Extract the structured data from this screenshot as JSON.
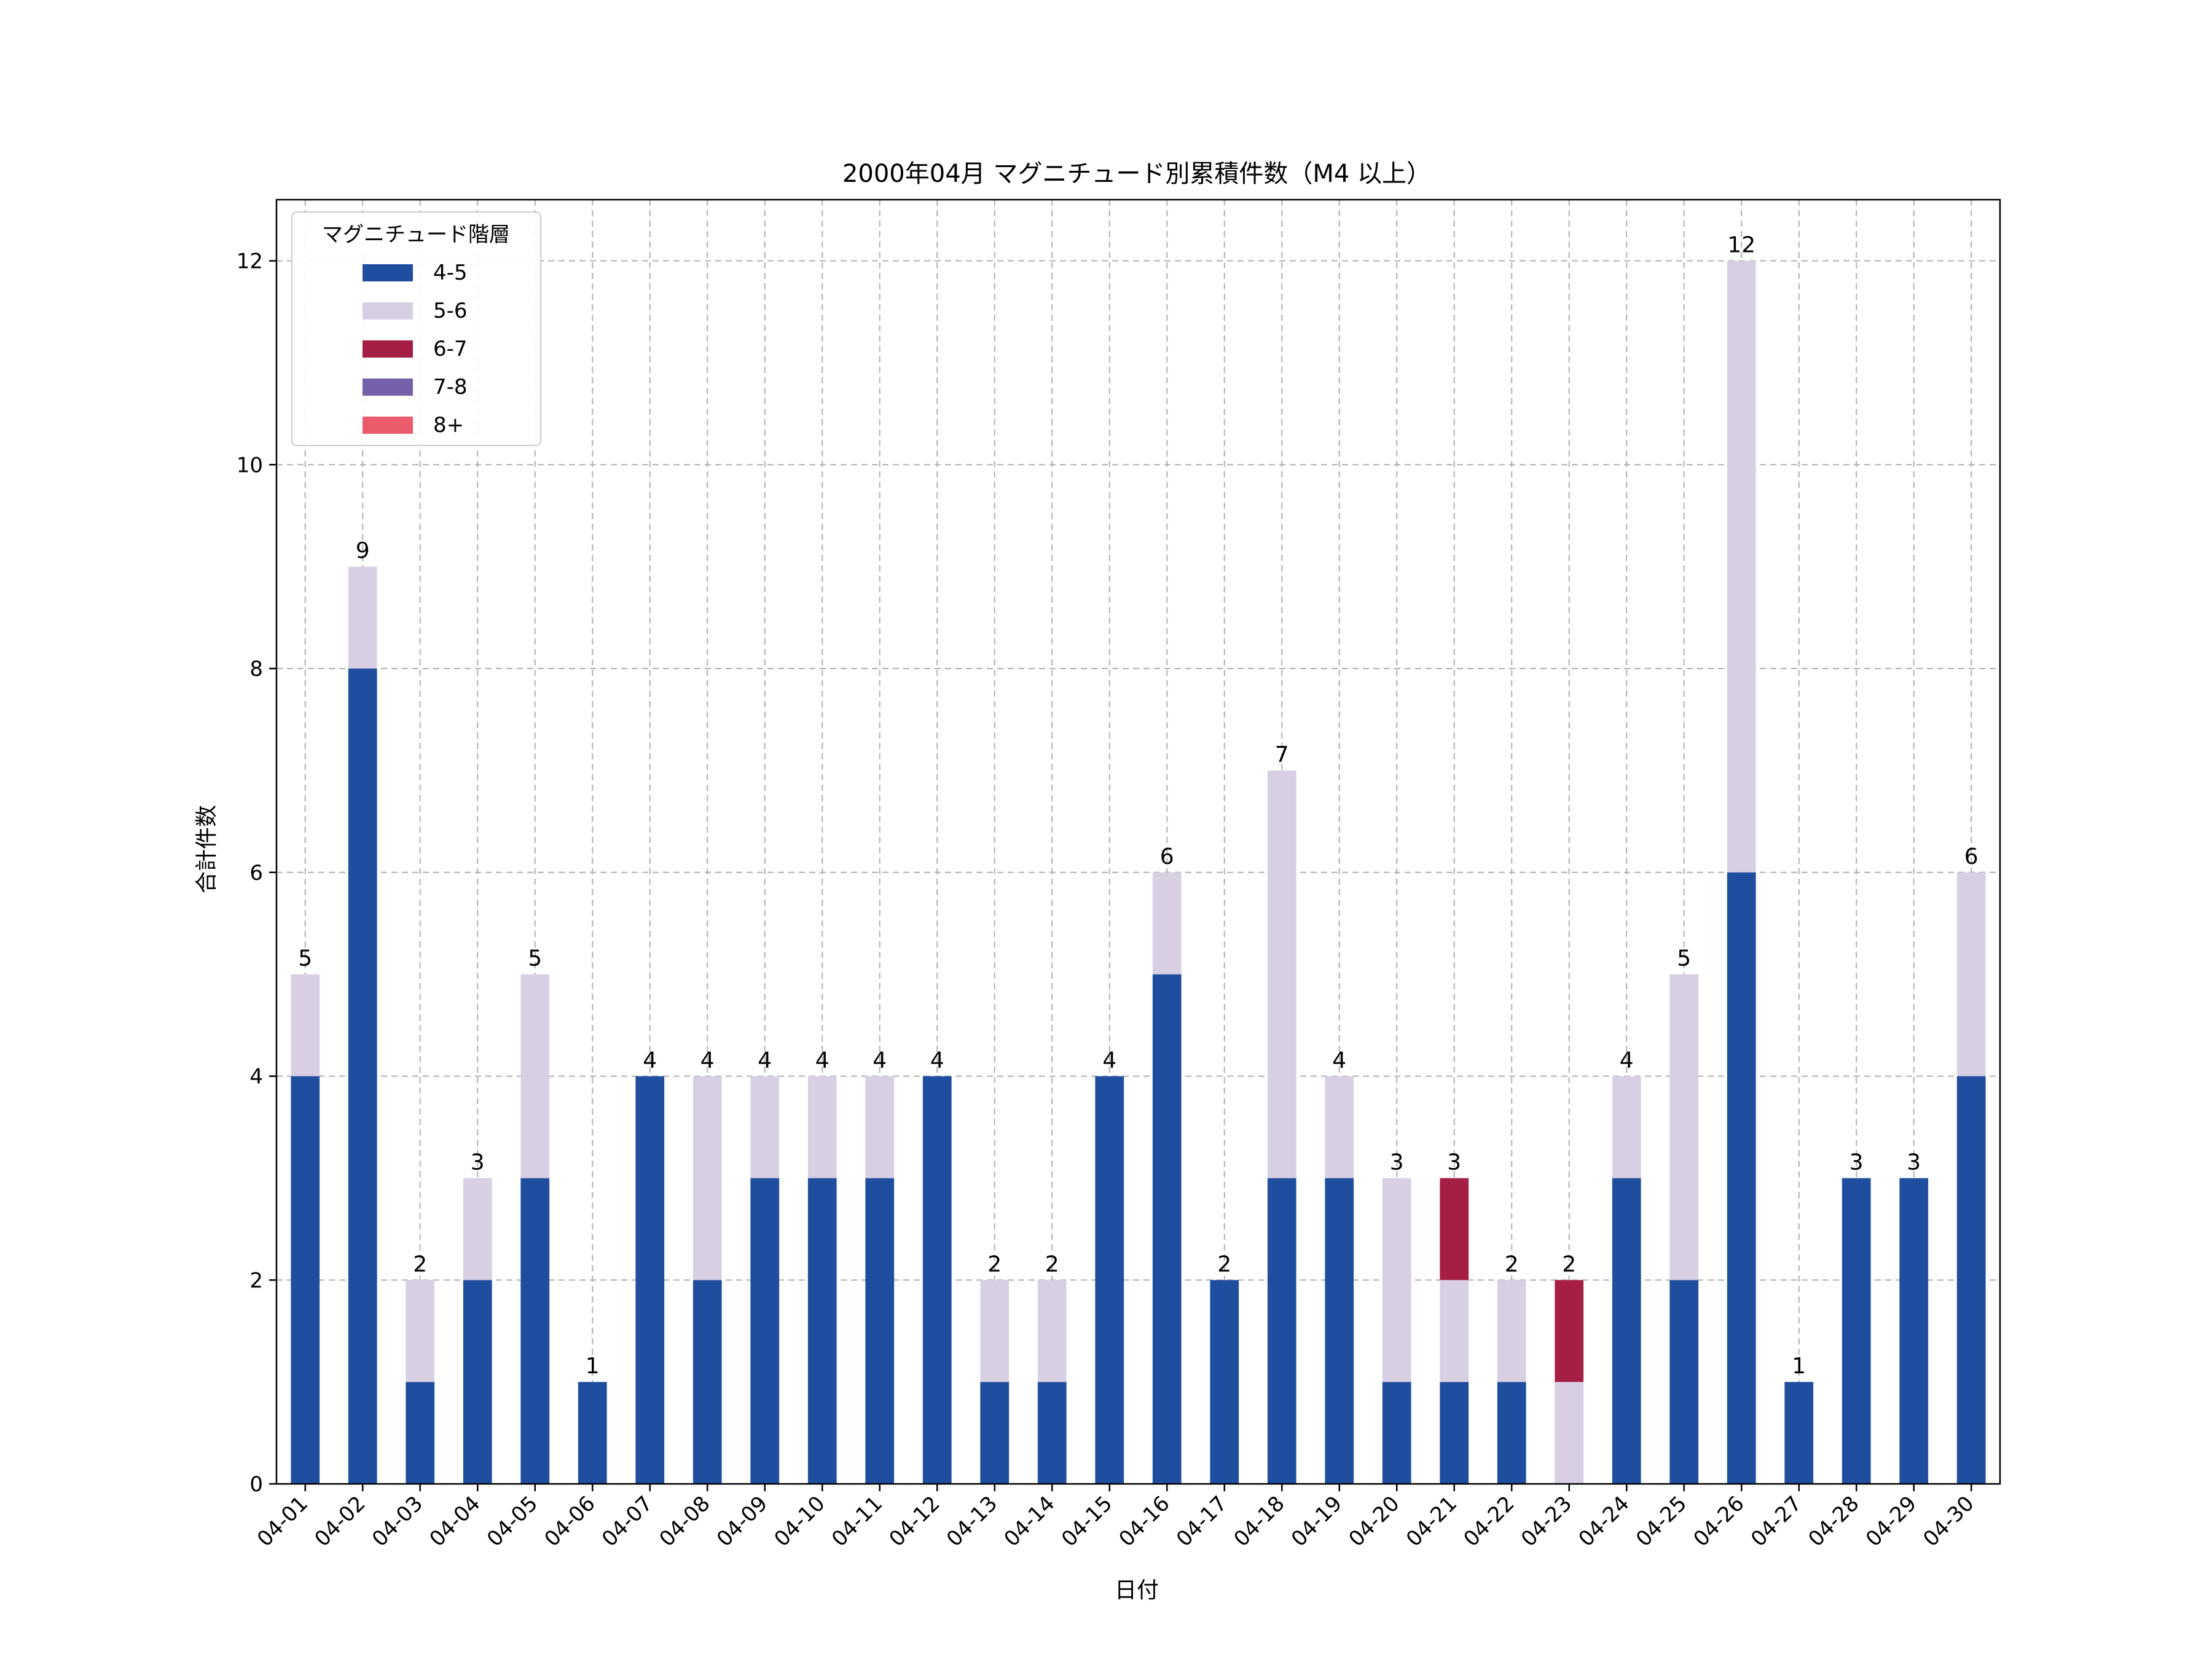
{
  "chart_data": {
    "type": "bar",
    "stacked": true,
    "title": "2000年04月 マグニチュード別累積件数（M4 以上）",
    "xlabel": "日付",
    "ylabel": "合計件数",
    "ylim": [
      0,
      12.6
    ],
    "yticks": [
      0,
      2,
      4,
      6,
      8,
      10,
      12
    ],
    "grid": true,
    "legend_title": "マグニチュード階層",
    "legend_position": "top-left",
    "categories": [
      "04-01",
      "04-02",
      "04-03",
      "04-04",
      "04-05",
      "04-06",
      "04-07",
      "04-08",
      "04-09",
      "04-10",
      "04-11",
      "04-12",
      "04-13",
      "04-14",
      "04-15",
      "04-16",
      "04-17",
      "04-18",
      "04-19",
      "04-20",
      "04-21",
      "04-22",
      "04-23",
      "04-24",
      "04-25",
      "04-26",
      "04-27",
      "04-28",
      "04-29",
      "04-30"
    ],
    "series": [
      {
        "name": "4-5",
        "color": "#1f4e9e",
        "values": [
          4,
          8,
          1,
          2,
          3,
          1,
          4,
          2,
          3,
          3,
          3,
          4,
          1,
          1,
          4,
          5,
          2,
          3,
          3,
          1,
          1,
          1,
          0,
          3,
          2,
          6,
          1,
          3,
          3,
          4
        ]
      },
      {
        "name": "5-6",
        "color": "#d9cfe3",
        "values": [
          1,
          1,
          1,
          1,
          2,
          0,
          0,
          2,
          1,
          1,
          1,
          0,
          1,
          1,
          0,
          1,
          0,
          4,
          1,
          2,
          1,
          1,
          1,
          1,
          3,
          6,
          0,
          0,
          0,
          2
        ]
      },
      {
        "name": "6-7",
        "color": "#a51f45",
        "values": [
          0,
          0,
          0,
          0,
          0,
          0,
          0,
          0,
          0,
          0,
          0,
          0,
          0,
          0,
          0,
          0,
          0,
          0,
          0,
          0,
          1,
          0,
          1,
          0,
          0,
          0,
          0,
          0,
          0,
          0
        ]
      },
      {
        "name": "7-8",
        "color": "#7560aa",
        "values": [
          0,
          0,
          0,
          0,
          0,
          0,
          0,
          0,
          0,
          0,
          0,
          0,
          0,
          0,
          0,
          0,
          0,
          0,
          0,
          0,
          0,
          0,
          0,
          0,
          0,
          0,
          0,
          0,
          0,
          0
        ]
      },
      {
        "name": "8+",
        "color": "#ec5b6c",
        "values": [
          0,
          0,
          0,
          0,
          0,
          0,
          0,
          0,
          0,
          0,
          0,
          0,
          0,
          0,
          0,
          0,
          0,
          0,
          0,
          0,
          0,
          0,
          0,
          0,
          0,
          0,
          0,
          0,
          0,
          0
        ]
      }
    ],
    "totals": [
      5,
      9,
      2,
      3,
      5,
      1,
      4,
      4,
      4,
      4,
      4,
      4,
      2,
      2,
      4,
      6,
      2,
      7,
      4,
      3,
      3,
      2,
      2,
      4,
      5,
      12,
      1,
      3,
      3,
      6
    ]
  }
}
